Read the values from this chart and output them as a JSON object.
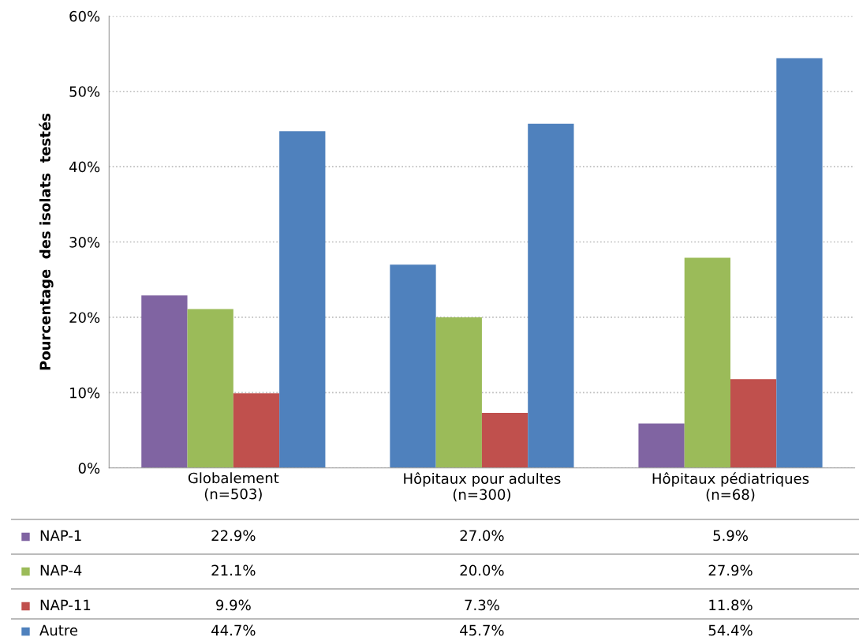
{
  "chart_data": {
    "type": "bar",
    "ylabel": "Pourcentage  des isolats  testés",
    "categories": [
      "Globalement\n(n=503)",
      "Hôpitaux pour adultes\n(n=300)",
      "Hôpitaux pédiatriques\n(n=68)"
    ],
    "series": [
      {
        "name": "NAP-1",
        "color": "#8064a2",
        "colors": [
          "#8064a2",
          "#4f81bd",
          "#8064a2"
        ],
        "values": [
          22.9,
          27.0,
          5.9
        ],
        "value_labels": [
          "22.9%",
          "27.0%",
          "5.9%"
        ]
      },
      {
        "name": "NAP-4",
        "color": "#9bbb59",
        "values": [
          21.1,
          20.0,
          27.9
        ],
        "value_labels": [
          "21.1%",
          "20.0%",
          "27.9%"
        ]
      },
      {
        "name": "NAP-11",
        "color": "#c0504d",
        "values": [
          9.9,
          7.3,
          11.8
        ],
        "value_labels": [
          "9.9%",
          "7.3%",
          "11.8%"
        ]
      },
      {
        "name": "Autre",
        "color": "#4f81bd",
        "values": [
          44.7,
          45.7,
          54.4
        ],
        "value_labels": [
          "44.7%",
          "45.7%",
          "54.4%"
        ]
      }
    ],
    "ylim": [
      0,
      60
    ],
    "yticks": [
      {
        "value": 0,
        "label": "0%"
      },
      {
        "value": 10,
        "label": "10%"
      },
      {
        "value": 20,
        "label": "20%"
      },
      {
        "value": 30,
        "label": "30%"
      },
      {
        "value": 40,
        "label": "40%"
      },
      {
        "value": 50,
        "label": "50%"
      },
      {
        "value": 60,
        "label": "60%"
      }
    ],
    "grid": "y",
    "legend": "bottom left",
    "data_labels": true
  }
}
